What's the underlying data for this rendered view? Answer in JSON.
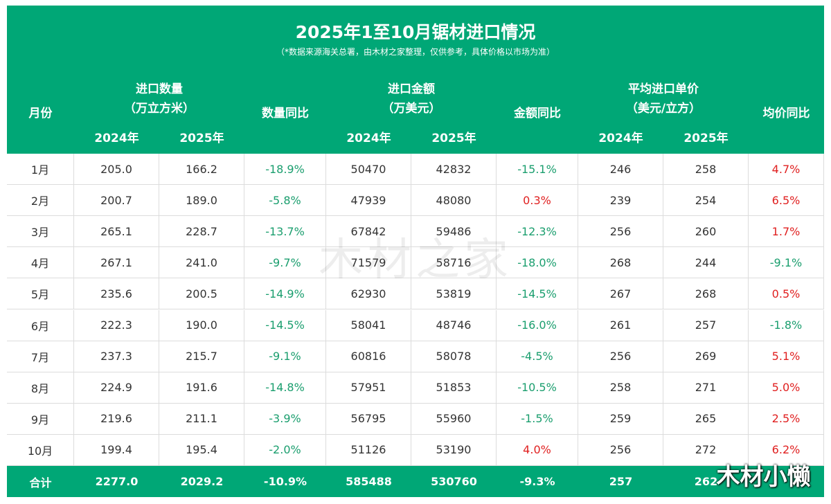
{
  "header": {
    "title": "2025年1至10月锯材进口情况",
    "subtitle": "（*数据来源海关总署，由木材之家整理，仅供参考，具体价格以市场为准）"
  },
  "table": {
    "month_label": "月份",
    "groups": [
      {
        "label": "进口数量",
        "unit": "（万立方米）",
        "years": [
          "2024年",
          "2025年"
        ],
        "yoy": "数量同比"
      },
      {
        "label": "进口金额",
        "unit": "（万美元）",
        "years": [
          "2024年",
          "2025年"
        ],
        "yoy": "金额同比"
      },
      {
        "label": "平均进口单价",
        "unit": "（美元/立方）",
        "years": [
          "2024年",
          "2025年"
        ],
        "yoy": "均价同比"
      }
    ],
    "rows": [
      [
        "1月",
        "205.0",
        "166.2",
        "-18.9%",
        "50470",
        "42832",
        "-15.1%",
        "246",
        "258",
        "4.7%"
      ],
      [
        "2月",
        "200.7",
        "189.0",
        "-5.8%",
        "47939",
        "48080",
        "0.3%",
        "239",
        "254",
        "6.5%"
      ],
      [
        "3月",
        "265.1",
        "228.7",
        "-13.7%",
        "67842",
        "59486",
        "-12.3%",
        "256",
        "260",
        "1.7%"
      ],
      [
        "4月",
        "267.1",
        "241.0",
        "-9.7%",
        "71579",
        "58716",
        "-18.0%",
        "268",
        "244",
        "-9.1%"
      ],
      [
        "5月",
        "235.6",
        "200.5",
        "-14.9%",
        "62930",
        "53819",
        "-14.5%",
        "267",
        "268",
        "0.5%"
      ],
      [
        "6月",
        "222.3",
        "190.0",
        "-14.5%",
        "58041",
        "48746",
        "-16.0%",
        "261",
        "257",
        "-1.8%"
      ],
      [
        "7月",
        "237.3",
        "215.7",
        "-9.1%",
        "60816",
        "58078",
        "-4.5%",
        "256",
        "269",
        "5.1%"
      ],
      [
        "8月",
        "224.9",
        "191.6",
        "-14.8%",
        "57951",
        "51853",
        "-10.5%",
        "258",
        "271",
        "5.0%"
      ],
      [
        "9月",
        "219.6",
        "211.1",
        "-3.9%",
        "56795",
        "55960",
        "-1.5%",
        "259",
        "265",
        "2.5%"
      ],
      [
        "10月",
        "199.4",
        "195.4",
        "-2.0%",
        "51126",
        "53190",
        "4.0%",
        "256",
        "272",
        "6.2%"
      ]
    ],
    "total": [
      "合计",
      "2277.0",
      "2029.2",
      "-10.9%",
      "585488",
      "530760",
      "-9.3%",
      "257",
      "262"
    ]
  },
  "watermarks": [
    "木材之家",
    "木材小懒"
  ]
}
